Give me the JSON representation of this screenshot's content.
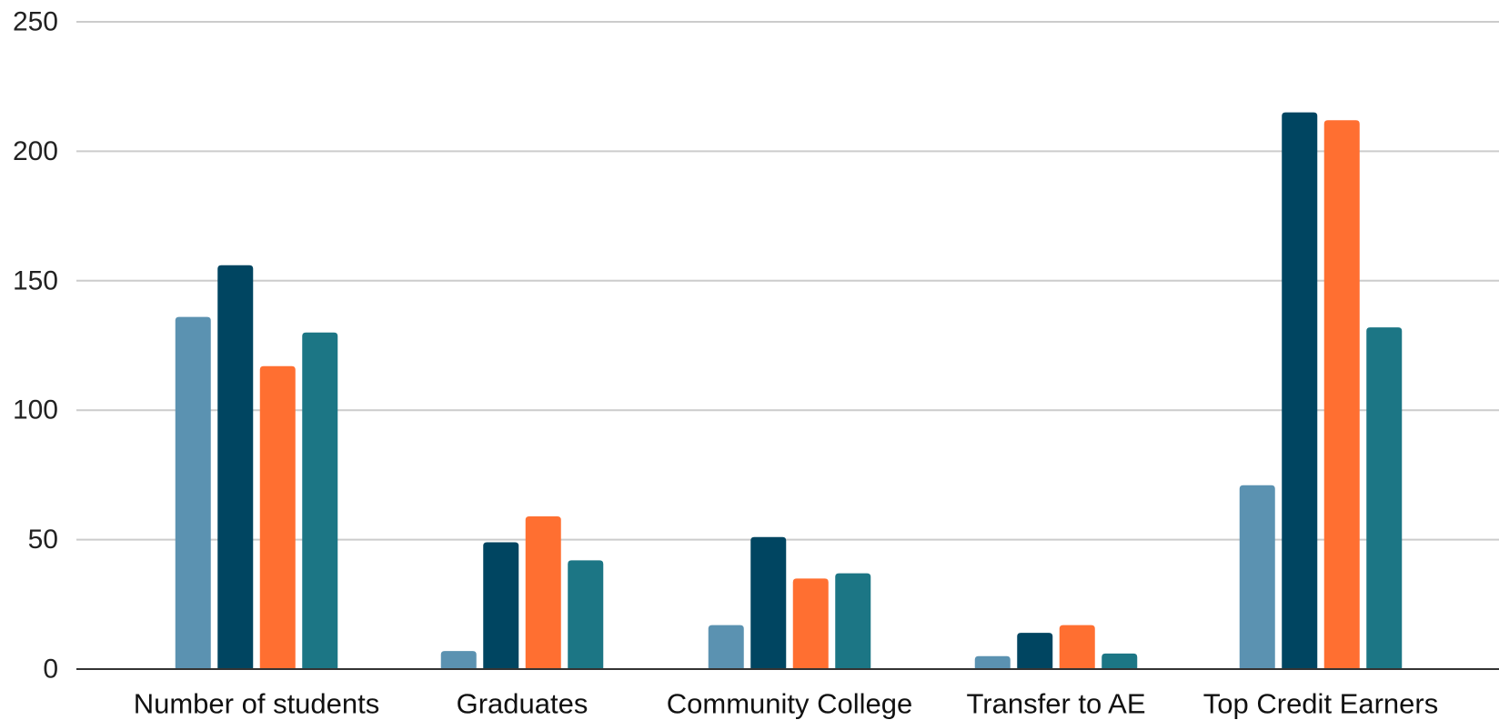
{
  "chart_data": {
    "type": "bar",
    "categories": [
      "Number of students",
      "Graduates",
      "Community College",
      "Transfer to AE",
      "Top Credit Earners"
    ],
    "series": [
      {
        "values": [
          136,
          7,
          17,
          5,
          71
        ],
        "color": "#5b92b1"
      },
      {
        "values": [
          156,
          49,
          51,
          14,
          215
        ],
        "color": "#004561"
      },
      {
        "values": [
          117,
          59,
          35,
          17,
          212
        ],
        "color": "#ff6f31"
      },
      {
        "values": [
          130,
          42,
          37,
          6,
          132
        ],
        "color": "#1c7685"
      }
    ],
    "ylim": [
      0,
      250
    ],
    "yticks": [
      0,
      50,
      100,
      150,
      200,
      250
    ],
    "grid": true,
    "legend": "none"
  }
}
